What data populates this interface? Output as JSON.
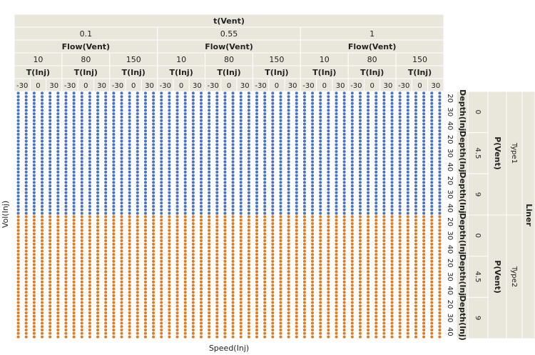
{
  "chart_data": {
    "type": "scatter",
    "xlabel": "Speed(Inj)",
    "ylabel": "Vol(Inj)",
    "column_factors": [
      {
        "name": "t(Vent)",
        "levels": [
          "0.1",
          "0.55",
          "1"
        ]
      },
      {
        "name": "Flow(Vent)",
        "levels": [
          "10",
          "80",
          "150"
        ]
      },
      {
        "name": "T(Inj)",
        "levels": [
          "-30",
          "0",
          "30"
        ]
      }
    ],
    "row_factors": [
      {
        "name": "Liner",
        "levels": [
          "Type1",
          "Type2"
        ]
      },
      {
        "name": "P(Vent)",
        "levels": [
          "0",
          "4.5",
          "9"
        ]
      },
      {
        "name": "Depth(Inj)",
        "levels": [
          "20",
          "30",
          "40"
        ]
      }
    ],
    "series": [
      {
        "name": "Type1",
        "color": "#4a72c4"
      },
      {
        "name": "Type2",
        "color": "#e07b22"
      }
    ],
    "dots_per_cell_x": 2,
    "dots_per_cell_y": 2
  }
}
